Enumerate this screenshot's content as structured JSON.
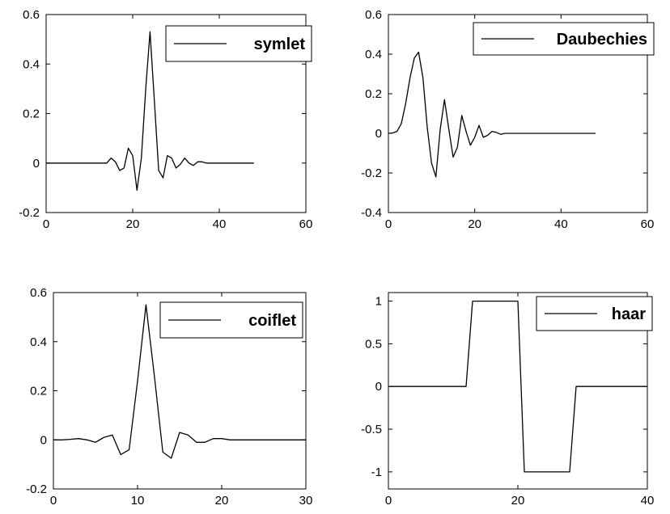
{
  "chart_data": [
    {
      "type": "line",
      "xlim": [
        0,
        60
      ],
      "ylim": [
        -0.2,
        0.6
      ],
      "xticks": [
        0,
        20,
        40,
        60
      ],
      "yticks": [
        -0.2,
        0,
        0.2,
        0.4,
        0.6
      ],
      "xtick_labels": [
        "0",
        "20",
        "40",
        "60"
      ],
      "ytick_labels": [
        "-0.2",
        "0",
        "0.2",
        "0.4",
        "0.6"
      ],
      "legend_position": "top-right",
      "grid": false,
      "series": [
        {
          "name": "symlet",
          "x": [
            0,
            14,
            15,
            16,
            17,
            18,
            19,
            20,
            21,
            22,
            23,
            24,
            25,
            26,
            27,
            28,
            29,
            30,
            31,
            32,
            33,
            34,
            35,
            36,
            37,
            38,
            48
          ],
          "y": [
            0,
            0,
            0.02,
            0.005,
            -0.03,
            -0.02,
            0.06,
            0.03,
            -0.11,
            0.02,
            0.3,
            0.53,
            0.25,
            -0.03,
            -0.06,
            0.03,
            0.02,
            -0.02,
            -0.005,
            0.02,
            0,
            -0.01,
            0.005,
            0.005,
            0,
            0,
            0
          ]
        }
      ]
    },
    {
      "type": "line",
      "xlim": [
        0,
        60
      ],
      "ylim": [
        -0.4,
        0.6
      ],
      "xticks": [
        0,
        20,
        40,
        60
      ],
      "yticks": [
        -0.4,
        -0.2,
        0,
        0.2,
        0.4,
        0.6
      ],
      "xtick_labels": [
        "0",
        "20",
        "40",
        "60"
      ],
      "ytick_labels": [
        "-0.4",
        "-0.2",
        "0",
        "0.2",
        "0.4",
        "0.6"
      ],
      "legend_position": "top-right",
      "grid": false,
      "series": [
        {
          "name": "Daubechies",
          "x": [
            0,
            1,
            2,
            3,
            4,
            5,
            6,
            7,
            8,
            9,
            10,
            11,
            12,
            13,
            14,
            15,
            16,
            17,
            18,
            19,
            20,
            21,
            22,
            23,
            24,
            25,
            26,
            27,
            48
          ],
          "y": [
            0,
            0.002,
            0.01,
            0.05,
            0.15,
            0.28,
            0.38,
            0.41,
            0.28,
            0.03,
            -0.15,
            -0.22,
            0.02,
            0.17,
            0.02,
            -0.12,
            -0.07,
            0.09,
            0.01,
            -0.06,
            -0.02,
            0.04,
            -0.02,
            -0.01,
            0.01,
            0.005,
            -0.005,
            0,
            0
          ]
        }
      ]
    },
    {
      "type": "line",
      "xlim": [
        0,
        30
      ],
      "ylim": [
        -0.2,
        0.6
      ],
      "xticks": [
        0,
        10,
        20,
        30
      ],
      "yticks": [
        -0.2,
        0,
        0.2,
        0.4,
        0.6
      ],
      "xtick_labels": [
        "0",
        "10",
        "20",
        "30"
      ],
      "ytick_labels": [
        "-0.2",
        "0",
        "0.2",
        "0.4",
        "0.6"
      ],
      "legend_position": "top-right",
      "grid": false,
      "series": [
        {
          "name": "coiflet",
          "x": [
            0,
            1,
            2,
            3,
            4,
            5,
            6,
            7,
            8,
            9,
            10,
            11,
            12,
            13,
            14,
            15,
            16,
            17,
            18,
            19,
            20,
            21,
            30
          ],
          "y": [
            0,
            0,
            0.002,
            0.005,
            0.0,
            -0.01,
            0.01,
            0.02,
            -0.06,
            -0.04,
            0.24,
            0.55,
            0.26,
            -0.05,
            -0.075,
            0.03,
            0.02,
            -0.01,
            -0.01,
            0.005,
            0.005,
            0,
            0
          ]
        }
      ]
    },
    {
      "type": "line",
      "xlim": [
        0,
        40
      ],
      "ylim": [
        -1.2,
        1.1
      ],
      "xticks": [
        0,
        20,
        40
      ],
      "yticks": [
        -1,
        -0.5,
        0,
        0.5,
        1
      ],
      "xtick_labels": [
        "0",
        "20",
        "40"
      ],
      "ytick_labels": [
        "-1",
        "-0.5",
        "0",
        "0.5",
        "1"
      ],
      "legend_position": "top-right",
      "grid": false,
      "series": [
        {
          "name": "haar",
          "x": [
            0,
            12,
            13,
            20,
            21,
            28,
            29,
            40
          ],
          "y": [
            0,
            0,
            1,
            1,
            -1,
            -1,
            0,
            0
          ]
        }
      ]
    }
  ]
}
